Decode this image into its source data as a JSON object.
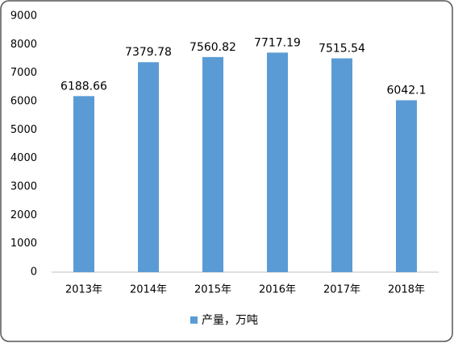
{
  "chart_data": {
    "type": "bar",
    "categories": [
      "2013年",
      "2014年",
      "2015年",
      "2016年",
      "2017年",
      "2018年"
    ],
    "series": [
      {
        "name": "产量，万吨",
        "color": "#5b9bd5",
        "values": [
          6188.66,
          7379.78,
          7560.82,
          7717.19,
          7515.54,
          6042.1
        ]
      }
    ],
    "ylim": [
      0,
      9000
    ],
    "yticks": [
      0,
      1000,
      2000,
      3000,
      4000,
      5000,
      6000,
      7000,
      8000,
      9000
    ],
    "grid": false,
    "legend": "bottom"
  }
}
